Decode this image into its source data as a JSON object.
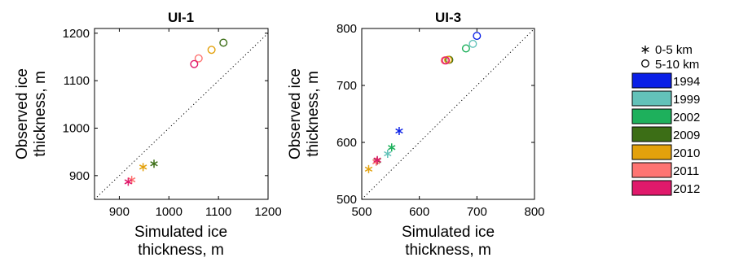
{
  "chart_data": [
    {
      "type": "scatter",
      "title": "UI-1",
      "xlabel": [
        "Simulated ice",
        "thickness, m"
      ],
      "ylabel": [
        "Observed ice",
        "thickness, m"
      ],
      "xlim": [
        850,
        1200
      ],
      "ylim": [
        850,
        1210
      ],
      "xticks": [
        "900",
        "1000",
        "1100",
        "1200"
      ],
      "yticks": [
        "900",
        "1000",
        "1100",
        "1200"
      ],
      "reference_line": "1:1 dotted",
      "series": [
        {
          "name": "1994",
          "points": []
        },
        {
          "name": "1999",
          "points": []
        },
        {
          "name": "2002",
          "points": []
        },
        {
          "name": "2009",
          "points": [
            {
              "depth": "0-5 km",
              "x": 970,
              "y": 925
            },
            {
              "depth": "5-10 km",
              "x": 1110,
              "y": 1180
            }
          ]
        },
        {
          "name": "2010",
          "points": [
            {
              "depth": "0-5 km",
              "x": 948,
              "y": 918
            },
            {
              "depth": "5-10 km",
              "x": 1086,
              "y": 1165
            }
          ]
        },
        {
          "name": "2011",
          "points": [
            {
              "depth": "0-5 km",
              "x": 925,
              "y": 891
            },
            {
              "depth": "5-10 km",
              "x": 1060,
              "y": 1147
            }
          ]
        },
        {
          "name": "2012",
          "points": [
            {
              "depth": "0-5 km",
              "x": 918,
              "y": 887
            },
            {
              "depth": "5-10 km",
              "x": 1051,
              "y": 1135
            }
          ]
        }
      ]
    },
    {
      "type": "scatter",
      "title": "UI-3",
      "xlabel": [
        "Simulated ice",
        "thickness, m"
      ],
      "ylabel": [
        "Observed ice",
        "thickness, m"
      ],
      "xlim": [
        500,
        800
      ],
      "ylim": [
        500,
        800
      ],
      "xticks": [
        "500",
        "600",
        "700",
        "800"
      ],
      "yticks": [
        "500",
        "600",
        "700",
        "800"
      ],
      "reference_line": "1:1 dotted",
      "series": [
        {
          "name": "1994",
          "points": [
            {
              "depth": "0-5 km",
              "x": 565,
              "y": 620
            },
            {
              "depth": "5-10 km",
              "x": 700,
              "y": 787
            }
          ]
        },
        {
          "name": "1999",
          "points": [
            {
              "depth": "0-5 km",
              "x": 545,
              "y": 580
            },
            {
              "depth": "5-10 km",
              "x": 693,
              "y": 773
            }
          ]
        },
        {
          "name": "2002",
          "points": [
            {
              "depth": "0-5 km",
              "x": 552,
              "y": 591
            },
            {
              "depth": "5-10 km",
              "x": 681,
              "y": 765
            }
          ]
        },
        {
          "name": "2009",
          "points": [
            {
              "depth": "0-5 km",
              "x": 527,
              "y": 568
            },
            {
              "depth": "5-10 km",
              "x": 652,
              "y": 745
            }
          ]
        },
        {
          "name": "2010",
          "points": [
            {
              "depth": "0-5 km",
              "x": 512,
              "y": 553
            },
            {
              "depth": "5-10 km",
              "x": 650,
              "y": 745
            }
          ]
        },
        {
          "name": "2011",
          "points": [
            {
              "depth": "0-5 km",
              "x": 525,
              "y": 566
            },
            {
              "depth": "5-10 km",
              "x": 644,
              "y": 744
            }
          ]
        },
        {
          "name": "2012",
          "points": [
            {
              "depth": "0-5 km",
              "x": 527,
              "y": 569
            },
            {
              "depth": "5-10 km",
              "x": 646,
              "y": 744
            }
          ]
        }
      ]
    }
  ],
  "legend": {
    "placement": "right",
    "markers": [
      {
        "symbol": "asterisk",
        "label": "0-5 km"
      },
      {
        "symbol": "circle",
        "label": "5-10 km"
      }
    ],
    "years": [
      {
        "label": "1994",
        "color": "#0a1fe6"
      },
      {
        "label": "1999",
        "color": "#63c2b9"
      },
      {
        "label": "2002",
        "color": "#1eb05c"
      },
      {
        "label": "2009",
        "color": "#3c6e16"
      },
      {
        "label": "2010",
        "color": "#e3a10c"
      },
      {
        "label": "2011",
        "color": "#fe7472"
      },
      {
        "label": "2012",
        "color": "#e0196b"
      }
    ]
  }
}
